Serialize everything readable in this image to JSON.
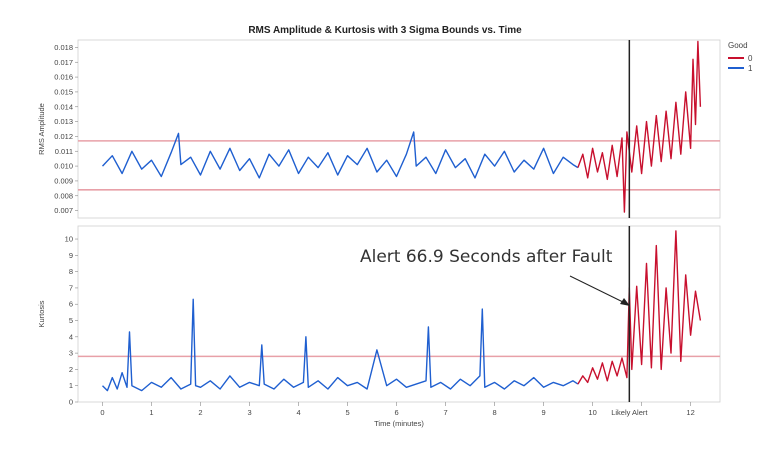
{
  "title": "RMS Amplitude & Kurtosis with 3 Sigma Bounds vs. Time",
  "legend": {
    "title": "Good",
    "entries": [
      {
        "label": "0",
        "color": "#c8102e"
      },
      {
        "label": "1",
        "color": "#1f5fd0"
      }
    ]
  },
  "annotation": "Alert 66.9 Seconds after Fault",
  "x_tick_special_label": "Likely Alert",
  "colors": {
    "good": "#1f5fd0",
    "bad": "#c8102e",
    "bound": "#e8a0a8",
    "alert_line": "#222222"
  },
  "chart_data": [
    {
      "type": "line",
      "name": "rms",
      "ylabel": "RMS Amplitude",
      "xlabel": "",
      "ylim": [
        0.0065,
        0.0185
      ],
      "yticks": [
        0.007,
        0.008,
        0.009,
        0.01,
        0.011,
        0.012,
        0.013,
        0.014,
        0.015,
        0.016,
        0.017,
        0.018
      ],
      "ytick_labels": [
        "0.007",
        "0.008",
        "0.009",
        "0.010",
        "0.011",
        "0.012",
        "0.013",
        "0.014",
        "0.015",
        "0.016",
        "0.017",
        "0.018"
      ],
      "bounds": [
        0.0084,
        0.0117
      ],
      "series": [
        {
          "name": "1",
          "x": [
            0.0,
            0.2,
            0.4,
            0.6,
            0.8,
            1.0,
            1.2,
            1.4,
            1.55,
            1.6,
            1.8,
            2.0,
            2.2,
            2.4,
            2.6,
            2.8,
            3.0,
            3.2,
            3.4,
            3.6,
            3.8,
            4.0,
            4.2,
            4.4,
            4.6,
            4.8,
            5.0,
            5.2,
            5.4,
            5.6,
            5.8,
            6.0,
            6.2,
            6.35,
            6.4,
            6.6,
            6.8,
            7.0,
            7.2,
            7.4,
            7.6,
            7.8,
            8.0,
            8.2,
            8.4,
            8.6,
            8.8,
            9.0,
            9.2,
            9.4,
            9.6,
            9.7
          ],
          "y": [
            0.01,
            0.0107,
            0.0095,
            0.011,
            0.0098,
            0.0104,
            0.0093,
            0.0109,
            0.0122,
            0.0101,
            0.0106,
            0.0094,
            0.011,
            0.0098,
            0.0112,
            0.0097,
            0.0105,
            0.0092,
            0.0108,
            0.01,
            0.0111,
            0.0095,
            0.0106,
            0.0099,
            0.0109,
            0.0094,
            0.0107,
            0.0101,
            0.0112,
            0.0096,
            0.0104,
            0.0093,
            0.0108,
            0.0123,
            0.01,
            0.0106,
            0.0095,
            0.0111,
            0.0099,
            0.0105,
            0.0092,
            0.0108,
            0.01,
            0.011,
            0.0096,
            0.0104,
            0.0098,
            0.0112,
            0.0095,
            0.0106,
            0.0101,
            0.0099
          ]
        },
        {
          "name": "0",
          "x": [
            9.7,
            9.8,
            9.9,
            10.0,
            10.1,
            10.2,
            10.3,
            10.4,
            10.5,
            10.6,
            10.65,
            10.7,
            10.8,
            10.9,
            11.0,
            11.1,
            11.2,
            11.3,
            11.4,
            11.5,
            11.6,
            11.7,
            11.8,
            11.9,
            12.0,
            12.05,
            12.1,
            12.15,
            12.2
          ],
          "y": [
            0.0099,
            0.0108,
            0.0092,
            0.0112,
            0.0096,
            0.0109,
            0.0091,
            0.0114,
            0.0093,
            0.0119,
            0.0069,
            0.0123,
            0.0096,
            0.0127,
            0.0095,
            0.013,
            0.01,
            0.0134,
            0.0103,
            0.0137,
            0.0105,
            0.0143,
            0.0108,
            0.015,
            0.0112,
            0.0172,
            0.0128,
            0.0184,
            0.014
          ]
        }
      ]
    },
    {
      "type": "line",
      "name": "kurtosis",
      "ylabel": "Kurtosis",
      "xlabel": "Time (minutes)",
      "xlim": [
        -0.5,
        12.6
      ],
      "xticks": [
        0,
        1,
        2,
        3,
        4,
        5,
        6,
        7,
        8,
        9,
        10,
        11,
        12
      ],
      "xtick_labels": [
        "0",
        "1",
        "2",
        "3",
        "4",
        "5",
        "6",
        "7",
        "8",
        "9",
        "10",
        "",
        "12"
      ],
      "alert_x": 10.75,
      "ylim": [
        0,
        10.8
      ],
      "yticks": [
        0,
        1,
        2,
        3,
        4,
        5,
        6,
        7,
        8,
        9,
        10
      ],
      "ytick_labels": [
        "0",
        "1",
        "2",
        "3",
        "4",
        "5",
        "6",
        "7",
        "8",
        "9",
        "10"
      ],
      "bounds": [
        2.8
      ],
      "series": [
        {
          "name": "1",
          "x": [
            0.0,
            0.1,
            0.2,
            0.3,
            0.4,
            0.5,
            0.55,
            0.6,
            0.8,
            1.0,
            1.2,
            1.4,
            1.6,
            1.8,
            1.85,
            1.9,
            2.0,
            2.2,
            2.4,
            2.6,
            2.8,
            3.0,
            3.2,
            3.25,
            3.3,
            3.5,
            3.7,
            3.9,
            4.1,
            4.15,
            4.2,
            4.4,
            4.6,
            4.8,
            5.0,
            5.2,
            5.4,
            5.6,
            5.8,
            6.0,
            6.2,
            6.4,
            6.6,
            6.65,
            6.7,
            6.9,
            7.1,
            7.3,
            7.5,
            7.7,
            7.75,
            7.8,
            8.0,
            8.2,
            8.4,
            8.6,
            8.8,
            9.0,
            9.2,
            9.4,
            9.6,
            9.7
          ],
          "y": [
            1.0,
            0.7,
            1.5,
            0.8,
            1.8,
            0.9,
            4.3,
            1.0,
            0.7,
            1.2,
            0.9,
            1.5,
            0.8,
            1.1,
            6.3,
            1.0,
            0.9,
            1.3,
            0.8,
            1.6,
            0.9,
            1.2,
            1.0,
            3.5,
            1.1,
            0.8,
            1.4,
            0.9,
            1.2,
            4.0,
            0.9,
            1.3,
            0.8,
            1.5,
            1.0,
            1.2,
            0.8,
            3.2,
            1.0,
            1.4,
            0.9,
            1.1,
            1.3,
            4.6,
            0.9,
            1.2,
            0.8,
            1.4,
            1.0,
            1.6,
            5.7,
            0.9,
            1.2,
            0.8,
            1.3,
            1.0,
            1.5,
            0.9,
            1.2,
            1.0,
            1.3,
            1.1
          ]
        },
        {
          "name": "0",
          "x": [
            9.7,
            9.8,
            9.9,
            10.0,
            10.1,
            10.2,
            10.3,
            10.4,
            10.5,
            10.6,
            10.7,
            10.75,
            10.8,
            10.9,
            11.0,
            11.1,
            11.2,
            11.3,
            11.4,
            11.5,
            11.6,
            11.7,
            11.8,
            11.9,
            12.0,
            12.1,
            12.2
          ],
          "y": [
            1.1,
            1.6,
            1.2,
            2.1,
            1.4,
            2.4,
            1.3,
            2.5,
            1.6,
            2.7,
            1.5,
            7.0,
            2.0,
            7.1,
            2.3,
            8.5,
            2.1,
            9.6,
            2.0,
            7.0,
            3.0,
            10.5,
            2.5,
            7.8,
            4.1,
            6.8,
            5.0
          ]
        }
      ]
    }
  ]
}
